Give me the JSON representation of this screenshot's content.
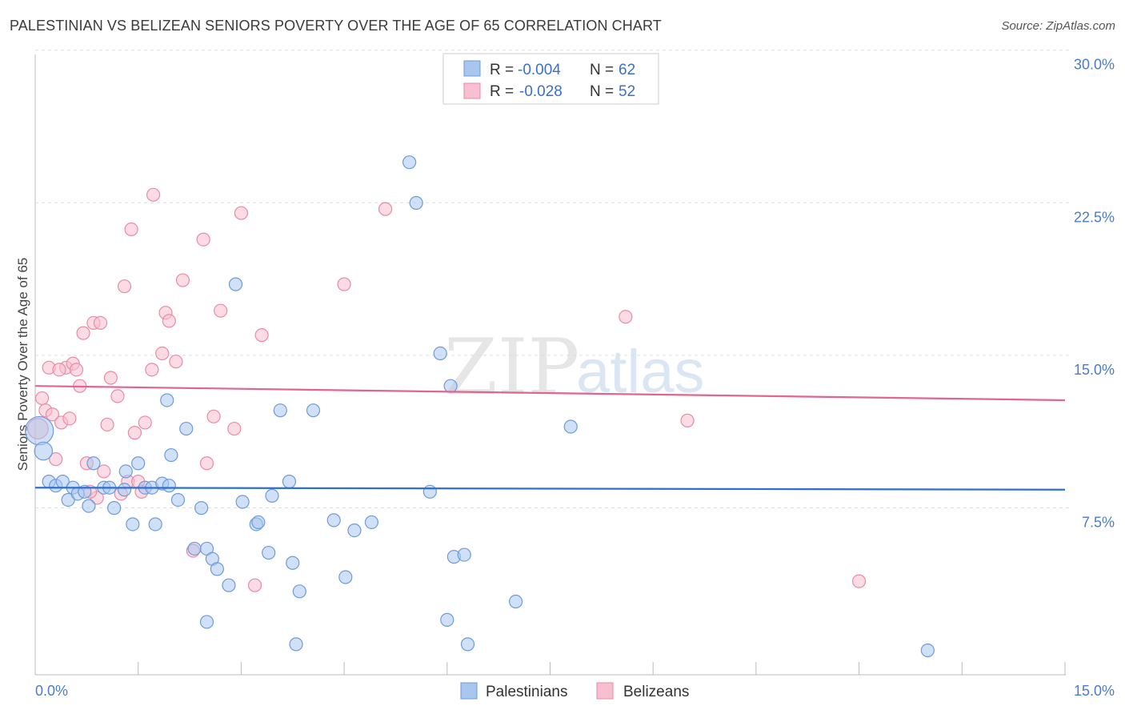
{
  "title": "PALESTINIAN VS BELIZEAN SENIORS POVERTY OVER THE AGE OF 65 CORRELATION CHART",
  "source": "Source: ZipAtlas.com",
  "watermark": {
    "part1": "ZIP",
    "part2": "atlas"
  },
  "colors": {
    "blue_fill": "#a9c6ee",
    "blue_stroke": "#6e9bd8",
    "blue_line": "#2e6fcf",
    "pink_fill": "#f7bfd0",
    "pink_stroke": "#e98aa8",
    "pink_line": "#e0668f",
    "grid": "#dddddd",
    "tick_text": "#4a7cc9"
  },
  "legend": {
    "rows": [
      {
        "r_label": "R =",
        "r_value": "-0.004",
        "n_label": "N =",
        "n_value": "62"
      },
      {
        "r_label": "R =",
        "r_value": "-0.028",
        "n_label": "N =",
        "n_value": "52"
      }
    ]
  },
  "bottom_legend": {
    "series1": "Palestinians",
    "series2": "Belizeans"
  },
  "chart_data": {
    "type": "scatter",
    "title": "PALESTINIAN VS BELIZEAN SENIORS POVERTY OVER THE AGE OF 65 CORRELATION CHART",
    "xlabel": "",
    "ylabel": "Seniors Poverty Over the Age of 65",
    "xlim": [
      0,
      15
    ],
    "ylim": [
      0,
      30.5
    ],
    "x_tick_labels": {
      "left": "0.0%",
      "right": "15.0%"
    },
    "y_ticks": [
      {
        "value": 7.5,
        "label": "7.5%"
      },
      {
        "value": 15.0,
        "label": "15.0%"
      },
      {
        "value": 22.5,
        "label": "22.5%"
      },
      {
        "value": 30.0,
        "label": "30.0%"
      }
    ],
    "series": [
      {
        "name": "Palestinians",
        "r": -0.004,
        "n": 62,
        "trend": {
          "x": [
            0,
            15
          ],
          "y": [
            9.2,
            9.1
          ]
        },
        "points": [
          [
            0.06,
            12.0,
            2.2
          ],
          [
            0.12,
            11.0,
            1.4
          ],
          [
            0.2,
            9.5,
            1
          ],
          [
            0.3,
            9.3,
            1
          ],
          [
            0.4,
            9.5,
            1
          ],
          [
            0.48,
            8.6,
            1
          ],
          [
            0.55,
            9.2,
            1
          ],
          [
            0.62,
            8.9,
            1
          ],
          [
            0.72,
            9.0,
            1
          ],
          [
            0.78,
            8.3,
            1
          ],
          [
            0.85,
            10.4,
            1
          ],
          [
            1.0,
            9.2,
            1
          ],
          [
            1.08,
            9.2,
            1
          ],
          [
            1.15,
            8.2,
            1
          ],
          [
            1.3,
            9.1,
            1
          ],
          [
            1.32,
            10.0,
            1
          ],
          [
            1.42,
            7.4,
            1
          ],
          [
            1.5,
            10.4,
            1
          ],
          [
            1.6,
            9.2,
            1
          ],
          [
            1.7,
            9.2,
            1
          ],
          [
            1.75,
            7.4,
            1
          ],
          [
            1.85,
            9.4,
            1
          ],
          [
            1.92,
            13.5,
            1
          ],
          [
            1.98,
            10.8,
            1
          ],
          [
            2.08,
            8.6,
            1
          ],
          [
            2.2,
            12.1,
            1
          ],
          [
            2.32,
            6.2,
            1
          ],
          [
            2.42,
            8.2,
            1
          ],
          [
            2.5,
            6.2,
            1
          ],
          [
            2.58,
            5.7,
            1
          ],
          [
            2.65,
            5.2,
            1
          ],
          [
            2.82,
            4.4,
            1
          ],
          [
            2.92,
            19.2,
            1
          ],
          [
            3.02,
            8.5,
            1
          ],
          [
            3.22,
            7.4,
            1
          ],
          [
            3.25,
            7.5,
            1
          ],
          [
            3.4,
            6.0,
            1
          ],
          [
            3.45,
            8.8,
            1
          ],
          [
            3.57,
            13.0,
            1
          ],
          [
            3.7,
            9.5,
            1
          ],
          [
            3.75,
            5.5,
            1
          ],
          [
            3.85,
            4.1,
            1
          ],
          [
            4.05,
            13.0,
            1
          ],
          [
            4.35,
            7.6,
            1
          ],
          [
            4.52,
            4.8,
            1
          ],
          [
            4.65,
            7.1,
            1
          ],
          [
            4.9,
            7.5,
            1
          ],
          [
            5.45,
            25.2,
            1
          ],
          [
            5.55,
            23.2,
            1
          ],
          [
            5.75,
            9.0,
            1
          ],
          [
            5.9,
            15.8,
            1
          ],
          [
            6.05,
            14.2,
            1
          ],
          [
            6.0,
            2.7,
            1
          ],
          [
            6.1,
            5.8,
            1
          ],
          [
            6.25,
            5.9,
            1
          ],
          [
            6.3,
            1.5,
            1
          ],
          [
            7.0,
            3.6,
            1
          ],
          [
            7.8,
            12.2,
            1
          ],
          [
            13.0,
            1.2,
            1
          ],
          [
            2.5,
            2.6,
            1
          ],
          [
            3.8,
            1.5,
            1
          ],
          [
            1.95,
            9.3,
            1
          ]
        ]
      },
      {
        "name": "Belizeans",
        "r": -0.028,
        "n": 52,
        "trend": {
          "x": [
            0,
            15
          ],
          "y": [
            14.2,
            13.5
          ]
        },
        "points": [
          [
            0.04,
            12.1,
            1.6
          ],
          [
            0.1,
            13.6,
            1
          ],
          [
            0.15,
            13.0,
            1
          ],
          [
            0.2,
            15.1,
            1
          ],
          [
            0.25,
            12.8,
            1
          ],
          [
            0.3,
            10.6,
            1
          ],
          [
            0.38,
            12.4,
            1
          ],
          [
            0.45,
            15.1,
            1
          ],
          [
            0.5,
            12.6,
            1
          ],
          [
            0.55,
            15.3,
            1
          ],
          [
            0.6,
            15.0,
            1
          ],
          [
            0.65,
            14.2,
            1
          ],
          [
            0.7,
            16.8,
            1
          ],
          [
            0.75,
            10.4,
            1
          ],
          [
            0.85,
            17.3,
            1
          ],
          [
            0.9,
            8.7,
            1
          ],
          [
            0.95,
            17.3,
            1
          ],
          [
            1.0,
            10.0,
            1
          ],
          [
            1.05,
            12.3,
            1
          ],
          [
            1.1,
            14.6,
            1
          ],
          [
            1.2,
            13.7,
            1
          ],
          [
            1.25,
            8.9,
            1
          ],
          [
            1.3,
            19.1,
            1
          ],
          [
            1.35,
            9.5,
            1
          ],
          [
            1.4,
            21.9,
            1
          ],
          [
            1.45,
            11.9,
            1
          ],
          [
            1.5,
            9.5,
            1
          ],
          [
            1.55,
            9.0,
            1
          ],
          [
            1.6,
            12.4,
            1
          ],
          [
            1.7,
            15.0,
            1
          ],
          [
            1.72,
            23.6,
            1
          ],
          [
            1.85,
            15.8,
            1
          ],
          [
            1.9,
            17.8,
            1
          ],
          [
            1.95,
            17.4,
            1
          ],
          [
            2.05,
            15.4,
            1
          ],
          [
            2.15,
            19.4,
            1
          ],
          [
            2.3,
            6.1,
            1
          ],
          [
            2.45,
            21.4,
            1
          ],
          [
            2.5,
            10.4,
            1
          ],
          [
            2.6,
            12.7,
            1
          ],
          [
            2.7,
            17.9,
            1
          ],
          [
            2.9,
            12.1,
            1
          ],
          [
            3.0,
            22.7,
            1
          ],
          [
            3.2,
            4.4,
            1
          ],
          [
            3.3,
            16.7,
            1
          ],
          [
            4.5,
            19.2,
            1
          ],
          [
            5.1,
            22.9,
            1
          ],
          [
            8.6,
            17.6,
            1
          ],
          [
            9.5,
            12.5,
            1
          ],
          [
            12.0,
            4.6,
            1
          ],
          [
            0.8,
            9.0,
            1
          ],
          [
            0.35,
            15.0,
            1
          ]
        ]
      }
    ]
  }
}
